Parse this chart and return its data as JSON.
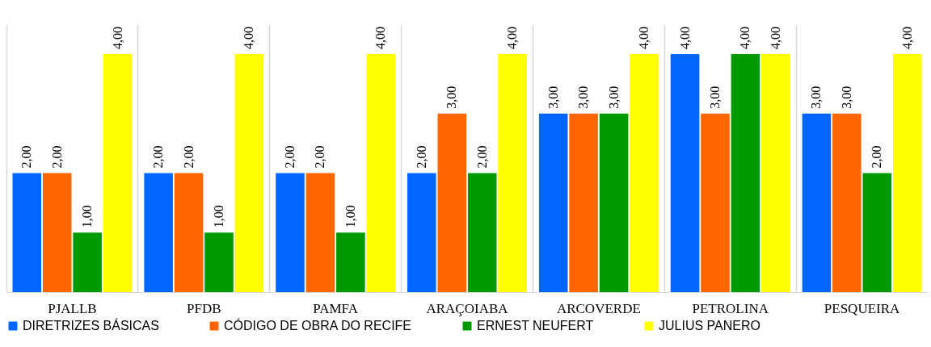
{
  "chart_data": {
    "type": "bar",
    "categories": [
      "PJALLB",
      "PFDB",
      "PAMFA",
      "ARAÇOIABA",
      "ARCOVERDE",
      "PETROLINA",
      "PESQUEIRA"
    ],
    "series": [
      {
        "name": "DIRETRIZES BÁSICAS",
        "color": "#0066ff",
        "values": [
          2,
          2,
          2,
          2,
          3,
          4,
          3
        ],
        "value_labels": [
          "2,00",
          "2,00",
          "2,00",
          "2,00",
          "3,00",
          "4,00",
          "3,00"
        ]
      },
      {
        "name": "CÓDIGO DE OBRA DO RECIFE",
        "color": "#ff6600",
        "values": [
          2,
          2,
          2,
          3,
          3,
          3,
          3
        ],
        "value_labels": [
          "2,00",
          "2,00",
          "2,00",
          "3,00",
          "3,00",
          "3,00",
          "3,00"
        ]
      },
      {
        "name": "ERNEST NEUFERT",
        "color": "#009900",
        "values": [
          1,
          1,
          1,
          2,
          3,
          4,
          2
        ],
        "value_labels": [
          "1,00",
          "1,00",
          "1,00",
          "2,00",
          "3,00",
          "4,00",
          "2,00"
        ]
      },
      {
        "name": "JULIUS PANERO",
        "color": "#ffff00",
        "values": [
          4,
          4,
          4,
          4,
          4,
          4,
          4
        ],
        "value_labels": [
          "4,00",
          "4,00",
          "4,00",
          "4,00",
          "4,00",
          "4,00",
          "4,00"
        ]
      }
    ],
    "ylim": [
      0,
      4.5
    ],
    "grid": "x",
    "legend": "bottom"
  }
}
